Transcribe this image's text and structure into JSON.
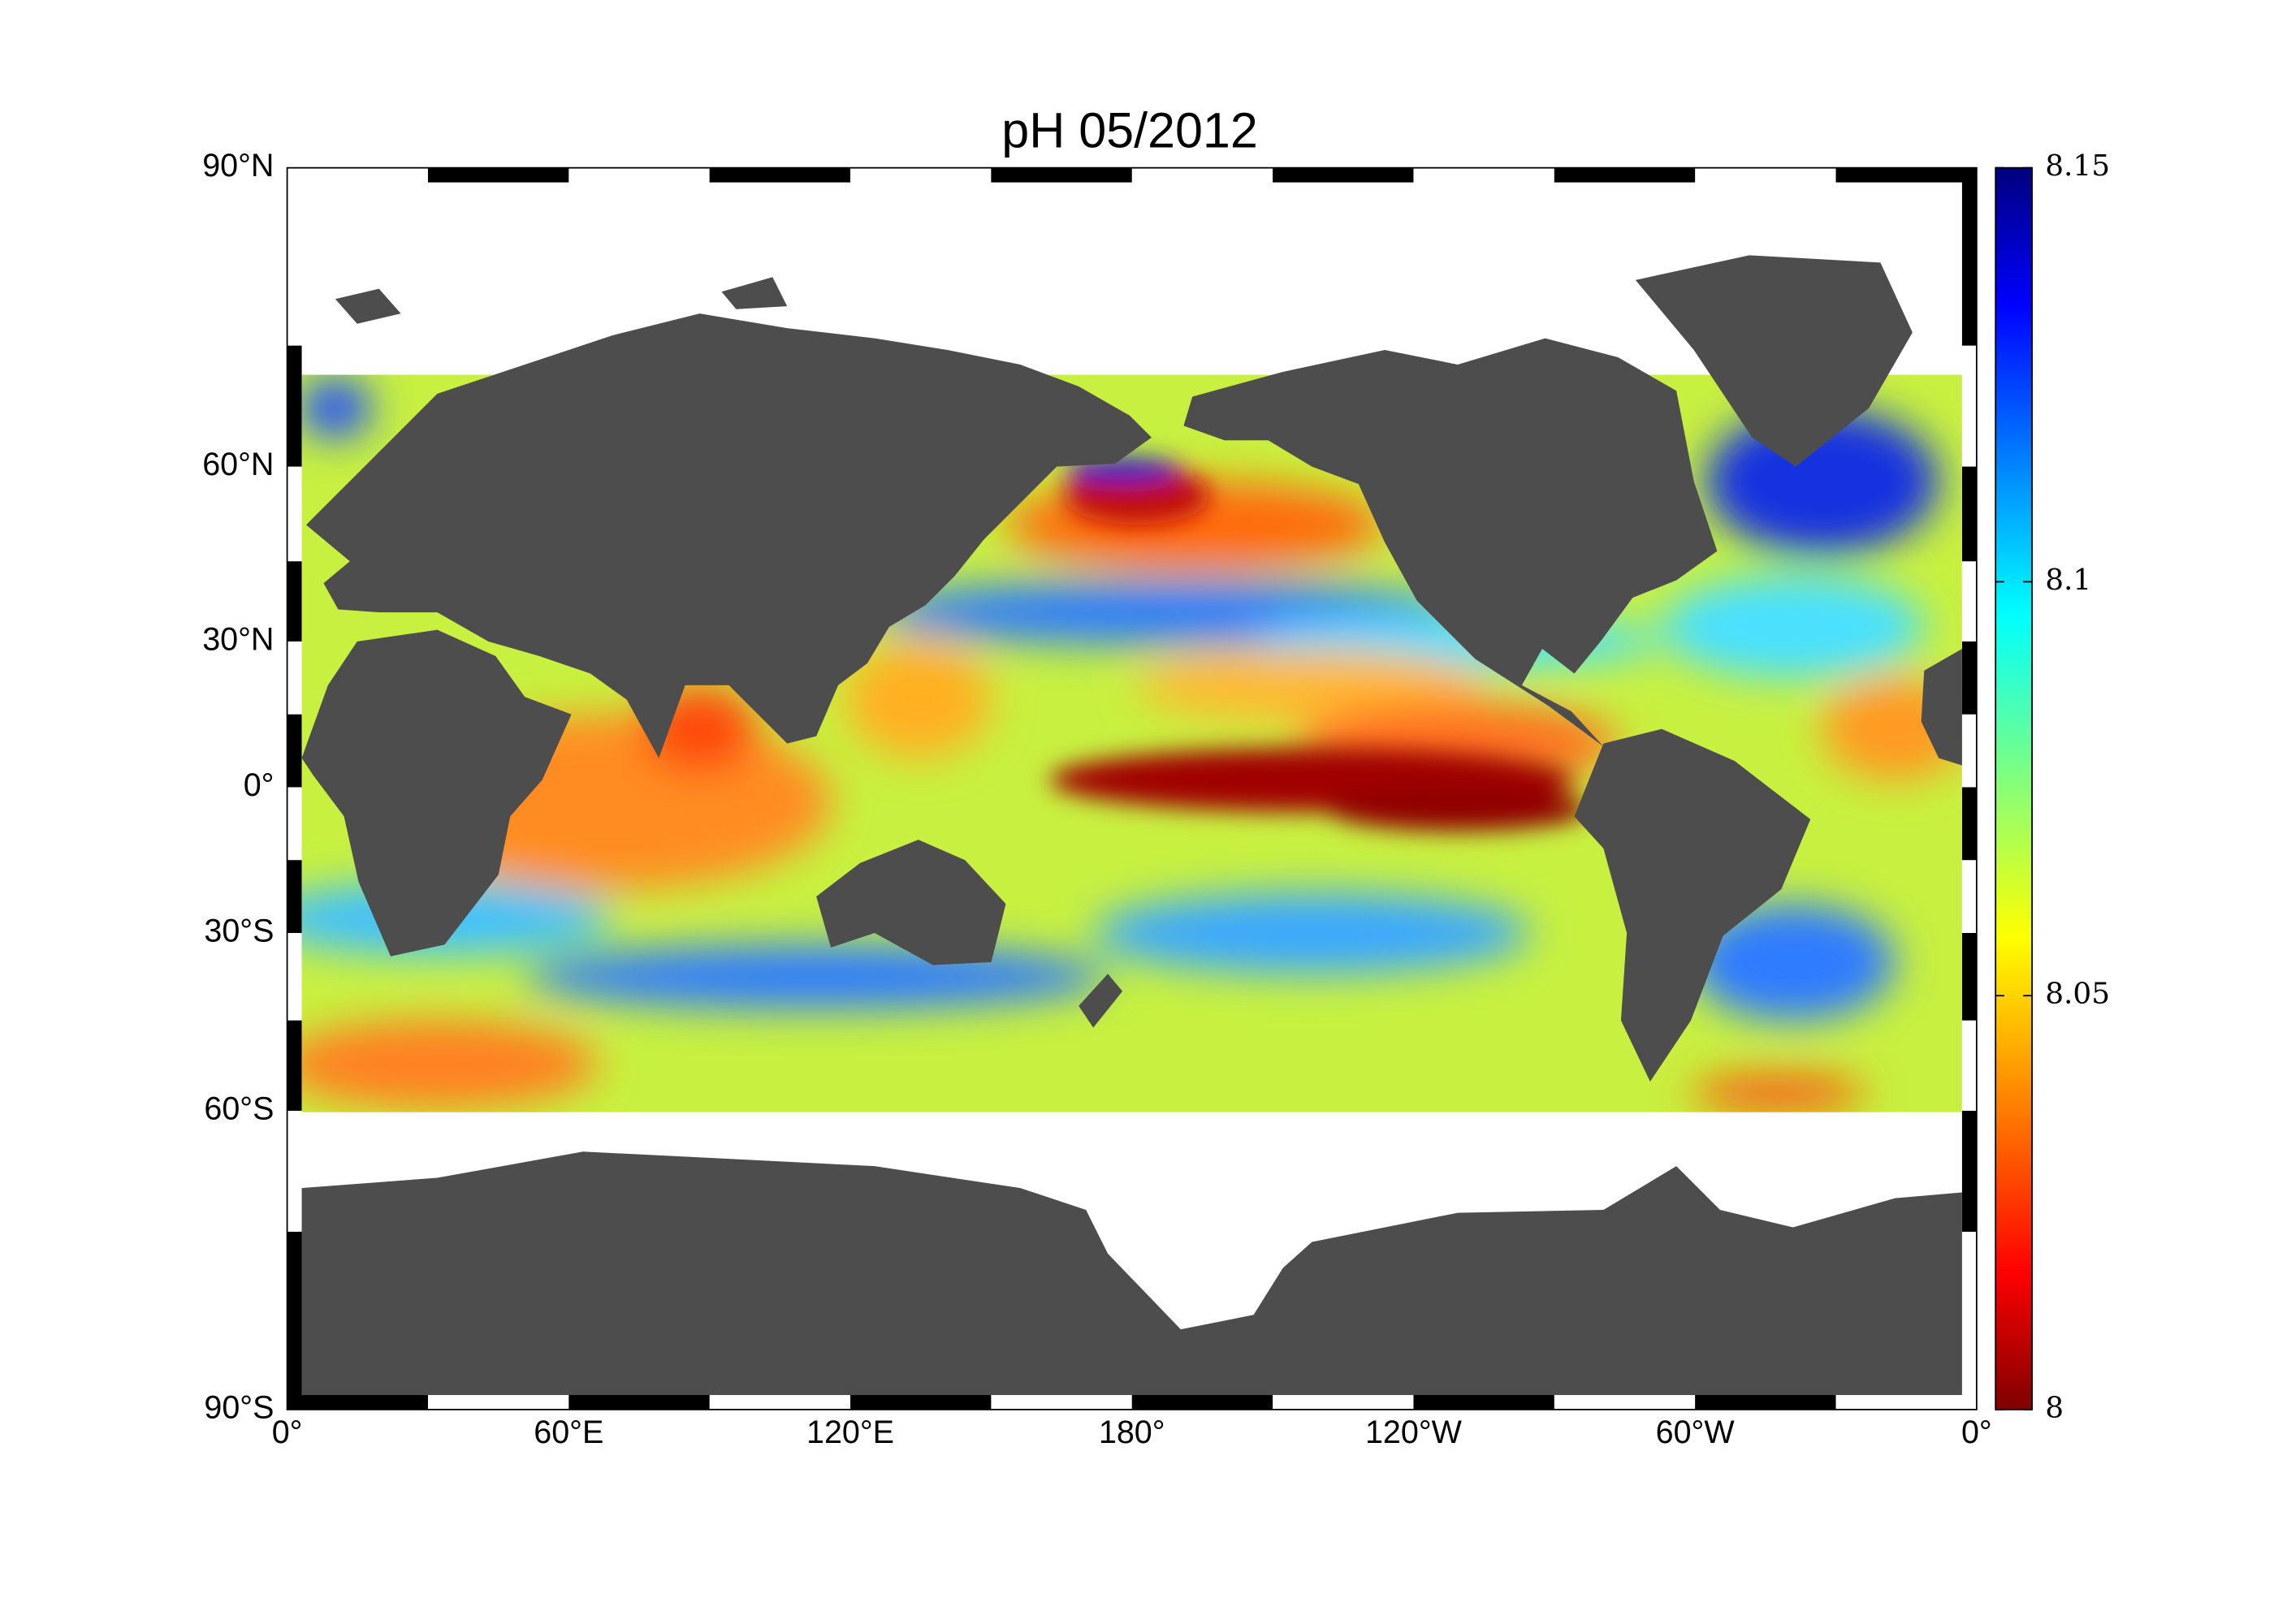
{
  "map": {
    "title": "pH  05/2012",
    "xticks": [
      "0°",
      "60°E",
      "120°E",
      "180°",
      "120°W",
      "60°W",
      "0°"
    ],
    "yticks": [
      "90°N",
      "60°N",
      "30°N",
      "0°",
      "30°S",
      "60°S",
      "90°S"
    ],
    "colorbar": {
      "lim": [
        8,
        8.15
      ],
      "ticks": [
        8,
        8.05,
        8.1,
        8.15
      ],
      "colormap": "jet"
    }
  }
}
